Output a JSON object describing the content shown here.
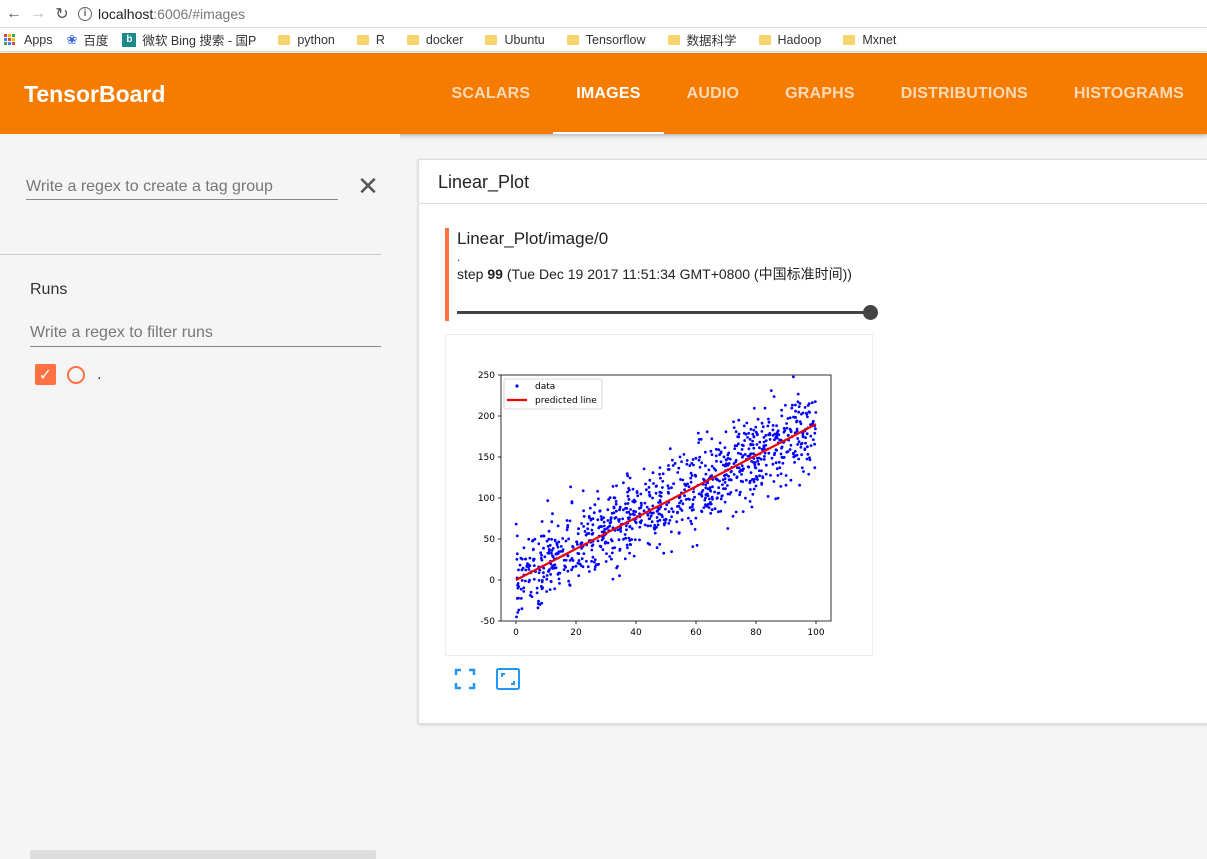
{
  "browser": {
    "url_host": "localhost",
    "url_rest": ":6006/#images",
    "bookmarks": [
      {
        "label": "Apps",
        "kind": "apps"
      },
      {
        "label": "百度",
        "kind": "baidu"
      },
      {
        "label": "微软 Bing 搜索 - 国P",
        "kind": "bing"
      },
      {
        "label": "python",
        "kind": "folder"
      },
      {
        "label": "R",
        "kind": "folder"
      },
      {
        "label": "docker",
        "kind": "folder"
      },
      {
        "label": "Ubuntu",
        "kind": "folder"
      },
      {
        "label": "Tensorflow",
        "kind": "folder"
      },
      {
        "label": "数据科学",
        "kind": "folder"
      },
      {
        "label": "Hadoop",
        "kind": "folder"
      },
      {
        "label": "Mxnet",
        "kind": "folder"
      }
    ]
  },
  "header": {
    "title": "TensorBoard",
    "tabs": [
      {
        "label": "SCALARS",
        "active": false
      },
      {
        "label": "IMAGES",
        "active": true
      },
      {
        "label": "AUDIO",
        "active": false
      },
      {
        "label": "GRAPHS",
        "active": false
      },
      {
        "label": "DISTRIBUTIONS",
        "active": false
      },
      {
        "label": "HISTOGRAMS",
        "active": false
      }
    ],
    "accent": "#f57c00"
  },
  "sidebar": {
    "tag_regex_placeholder": "Write a regex to create a tag group",
    "runs_label": "Runs",
    "runs_regex_placeholder": "Write a regex to filter runs",
    "runs": [
      {
        "name": ".",
        "checked": true,
        "color": "#ff7043"
      }
    ]
  },
  "card": {
    "title": "Linear_Plot",
    "image": {
      "tag": "Linear_Plot/image/0",
      "run": ".",
      "step_prefix": "step ",
      "step": "99",
      "step_time": " (Tue Dec 19 2017 11:51:34 GMT+0800 (中国标准时间))",
      "slider_fraction": 1.0
    }
  },
  "chart_data": {
    "type": "scatter",
    "xlim": [
      -5,
      105
    ],
    "ylim": [
      -50,
      250
    ],
    "x_ticks": [
      "0",
      "20",
      "40",
      "60",
      "80",
      "100"
    ],
    "y_ticks": [
      "-50",
      "0",
      "50",
      "100",
      "150",
      "200",
      "250"
    ],
    "legend": {
      "placement": "top-left",
      "entries": [
        "data",
        "predicted line"
      ]
    },
    "series": [
      {
        "name": "data",
        "kind": "points",
        "color": "#0000ff",
        "count": 1000,
        "slope": 1.9,
        "intercept": 0,
        "noise": 25
      },
      {
        "name": "predicted line",
        "kind": "line",
        "color": "#ee0000",
        "x": [
          0,
          100
        ],
        "y": [
          0,
          190
        ]
      }
    ]
  }
}
